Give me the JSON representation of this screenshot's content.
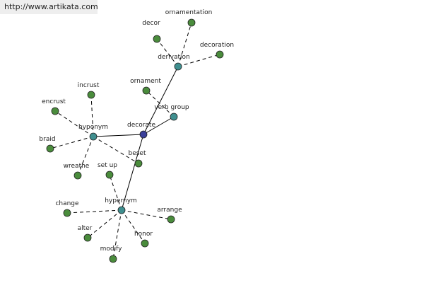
{
  "header": {
    "url": "http://www.artikata.com"
  },
  "nodes": [
    {
      "label": "decorate"
    },
    {
      "label": "verb group"
    },
    {
      "label": "derivation"
    },
    {
      "label": "hypernym"
    },
    {
      "label": "hyponym"
    },
    {
      "label": "decor"
    },
    {
      "label": "ornamentation"
    },
    {
      "label": "decoration"
    },
    {
      "label": "ornament"
    },
    {
      "label": "incrust"
    },
    {
      "label": "encrust"
    },
    {
      "label": "braid"
    },
    {
      "label": "wreathe"
    },
    {
      "label": "beset"
    },
    {
      "label": "set up"
    },
    {
      "label": "change"
    },
    {
      "label": "alter"
    },
    {
      "label": "modify"
    },
    {
      "label": "honor"
    },
    {
      "label": "arrange"
    }
  ]
}
